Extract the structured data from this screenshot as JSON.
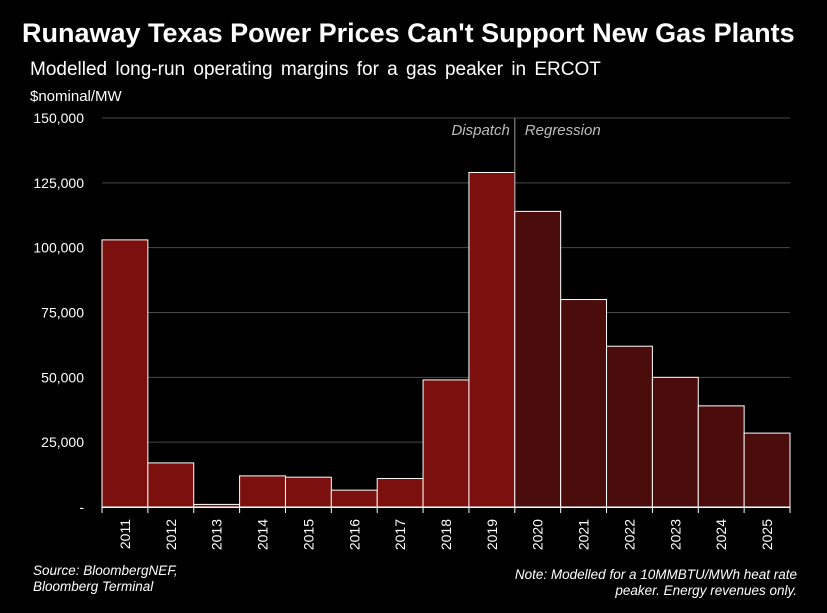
{
  "header": {
    "title": "Runaway Texas Power Prices Can't Support New Gas Plants",
    "subtitle": "Modelled long-run operating margins for a gas peaker in ERCOT",
    "unit": "$nominal/MW"
  },
  "footer": {
    "source_line1": "Source: BloombergNEF,",
    "source_line2": "Bloomberg Terminal",
    "note_line1": "Note: Modelled for a 10MMBTU/MWh heat rate",
    "note_line2": "peaker. Energy revenues only."
  },
  "colors": {
    "dispatch": "#7b100e",
    "regression": "#4a0d0b"
  },
  "chart_data": {
    "type": "bar",
    "title": "Runaway Texas Power Prices Can't Support New Gas Plants",
    "ylabel": "$nominal/MW",
    "ylim": [
      0,
      150000
    ],
    "yticks": [
      0,
      25000,
      50000,
      75000,
      100000,
      125000,
      150000
    ],
    "ytick_labels": [
      "-",
      "25,000",
      "50,000",
      "75,000",
      "100,000",
      "125,000",
      "150,000"
    ],
    "categories": [
      "2011",
      "2012",
      "2013",
      "2014",
      "2015",
      "2016",
      "2017",
      "2018",
      "2019",
      "2020",
      "2021",
      "2022",
      "2023",
      "2024",
      "2025"
    ],
    "values": [
      103000,
      17000,
      1000,
      12000,
      11500,
      6500,
      11000,
      49000,
      129000,
      114000,
      80000,
      62000,
      50000,
      39000,
      28500
    ],
    "series_type": [
      "Dispatch",
      "Dispatch",
      "Dispatch",
      "Dispatch",
      "Dispatch",
      "Dispatch",
      "Dispatch",
      "Dispatch",
      "Dispatch",
      "Regression",
      "Regression",
      "Regression",
      "Regression",
      "Regression",
      "Regression"
    ],
    "region_labels": [
      "Dispatch",
      "Regression"
    ],
    "grid": true
  }
}
